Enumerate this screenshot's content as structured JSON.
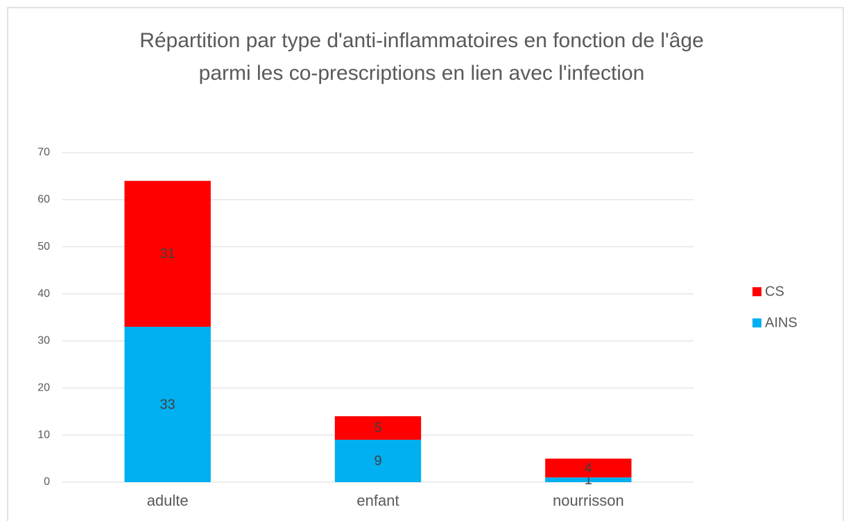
{
  "chart_data": {
    "type": "stacked_bar",
    "title": [
      "Répartition par type d'anti-inflammatoires en fonction de l'âge",
      "parmi les co-prescriptions en lien avec l'infection"
    ],
    "categories": [
      "adulte",
      "enfant",
      "nourrisson"
    ],
    "series": [
      {
        "name": "AINS",
        "color": "#00b0f0",
        "values": [
          33,
          9,
          1
        ]
      },
      {
        "name": "CS",
        "color": "#ff0000",
        "values": [
          31,
          5,
          4
        ]
      }
    ],
    "ylim": [
      0,
      70
    ],
    "yticks": [
      0,
      10,
      20,
      30,
      40,
      50,
      60,
      70
    ],
    "grid": true,
    "legend": "right"
  }
}
